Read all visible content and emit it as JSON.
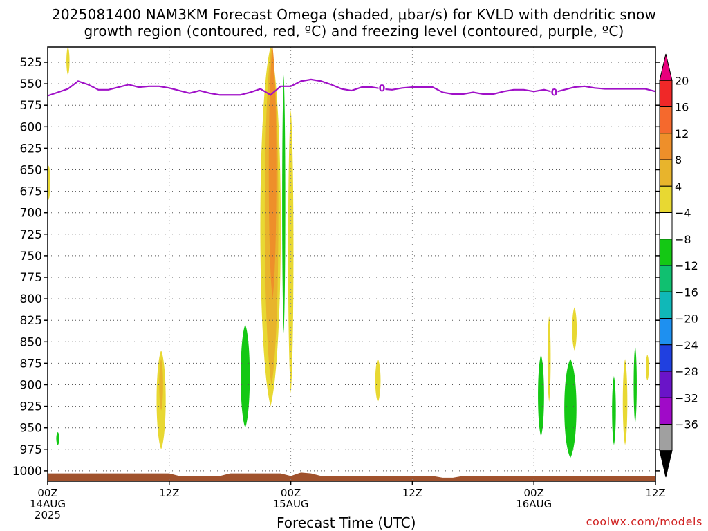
{
  "title_line1": "2025081400 NAM3KM Forecast Omega (shaded, μbar/s) for KVLD with dendritic snow",
  "title_line2": "growth region (contoured, red, ºC) and freezing level (contoured, purple, ºC)",
  "credit": "coolwx.com/models",
  "chart_data": {
    "type": "heatmap",
    "title": "2025081400 NAM3KM Forecast Omega (shaded, μbar/s) for KVLD with dendritic snow growth region (contoured, red, ºC) and freezing level (contoured, purple, ºC)",
    "xlabel": "Forecast Time (UTC)",
    "ylabel": "",
    "x_unit": "forecast hours from 2025-08-14 00Z",
    "xlim": [
      0,
      60
    ],
    "ylim": [
      1015,
      507
    ],
    "x_ticks": [
      {
        "hour": 0,
        "lines": [
          "00Z",
          "14AUG",
          "2025"
        ]
      },
      {
        "hour": 12,
        "lines": [
          "12Z"
        ]
      },
      {
        "hour": 24,
        "lines": [
          "00Z",
          "15AUG"
        ]
      },
      {
        "hour": 36,
        "lines": [
          "12Z"
        ]
      },
      {
        "hour": 48,
        "lines": [
          "00Z",
          "16AUG"
        ]
      },
      {
        "hour": 60,
        "lines": [
          "12Z"
        ]
      }
    ],
    "y_ticks": [
      525,
      550,
      575,
      600,
      625,
      650,
      675,
      700,
      725,
      750,
      775,
      800,
      825,
      850,
      875,
      900,
      925,
      950,
      975,
      1000
    ],
    "grid": true,
    "colorbar": {
      "labels": [
        "20",
        "16",
        "12",
        "8",
        "4",
        "−4",
        "−8",
        "−12",
        "−16",
        "−20",
        "−24",
        "−28",
        "−32",
        "−36"
      ],
      "colors_top_to_bottom": [
        "#e8007c",
        "#f02828",
        "#f5692d",
        "#ee8f2a",
        "#e8b42c",
        "#e8d832",
        "#ffffff",
        "#14c814",
        "#10c070",
        "#10b8b8",
        "#1e90f0",
        "#2040e0",
        "#6a14c8",
        "#a00ac8",
        "#a0a0a0",
        "#000000"
      ]
    },
    "freezing_level": {
      "color": "#a010c8",
      "label": "0",
      "points": [
        [
          0,
          564
        ],
        [
          2,
          556
        ],
        [
          3,
          547
        ],
        [
          4,
          551
        ],
        [
          5,
          557
        ],
        [
          6,
          557
        ],
        [
          7,
          554
        ],
        [
          8,
          551
        ],
        [
          9,
          554
        ],
        [
          10,
          553
        ],
        [
          11,
          553
        ],
        [
          12,
          555
        ],
        [
          13,
          558
        ],
        [
          14,
          561
        ],
        [
          15,
          558
        ],
        [
          16,
          561
        ],
        [
          17,
          563
        ],
        [
          18,
          563
        ],
        [
          19,
          563
        ],
        [
          20,
          560
        ],
        [
          21,
          556
        ],
        [
          22,
          563
        ],
        [
          23,
          553
        ],
        [
          24,
          553
        ],
        [
          25,
          547
        ],
        [
          26,
          545
        ],
        [
          27,
          547
        ],
        [
          28,
          551
        ],
        [
          29,
          556
        ],
        [
          30,
          558
        ],
        [
          31,
          554
        ],
        [
          32,
          554
        ],
        [
          33,
          556
        ],
        [
          34,
          557
        ],
        [
          35,
          555
        ],
        [
          36,
          554
        ],
        [
          37,
          554
        ],
        [
          38,
          554
        ],
        [
          39,
          560
        ],
        [
          40,
          562
        ],
        [
          41,
          562
        ],
        [
          42,
          560
        ],
        [
          43,
          562
        ],
        [
          44,
          562
        ],
        [
          45,
          559
        ],
        [
          46,
          557
        ],
        [
          47,
          557
        ],
        [
          48,
          559
        ],
        [
          49,
          557
        ],
        [
          50,
          560
        ],
        [
          51,
          557
        ],
        [
          52,
          554
        ],
        [
          53,
          553
        ],
        [
          54,
          555
        ],
        [
          55,
          556
        ],
        [
          56,
          556
        ],
        [
          57,
          556
        ],
        [
          58,
          556
        ],
        [
          59,
          556
        ],
        [
          60,
          559
        ]
      ]
    },
    "omega_regions": [
      {
        "value": 4,
        "color": "#e8d832",
        "center": [
          22.0,
          720
        ],
        "rx": 1.35,
        "p": [
          507,
          925
        ]
      },
      {
        "value": 8,
        "color": "#e8b42c",
        "center": [
          22.1,
          700
        ],
        "rx": 0.9,
        "p": [
          507,
          900
        ]
      },
      {
        "value": 12,
        "color": "#ee8f2a",
        "center": [
          22.2,
          640
        ],
        "rx": 0.5,
        "p": [
          507,
          800
        ]
      },
      {
        "value": -8,
        "color": "#14c814",
        "center": [
          23.3,
          660
        ],
        "rx": 0.15,
        "p": [
          540,
          840
        ]
      },
      {
        "value": 4,
        "color": "#e8d832",
        "center": [
          24.0,
          755
        ],
        "rx": 0.35,
        "p": [
          580,
          910
        ]
      },
      {
        "value": 4,
        "color": "#e8d832",
        "center": [
          11.2,
          920
        ],
        "rx": 0.6,
        "p": [
          860,
          975
        ]
      },
      {
        "value": 8,
        "color": "#e8b42c",
        "center": [
          11.2,
          900
        ],
        "rx": 0.25,
        "p": [
          870,
          930
        ]
      },
      {
        "value": -8,
        "color": "#14c814",
        "center": [
          19.5,
          885
        ],
        "rx": 0.6,
        "p": [
          830,
          950
        ]
      },
      {
        "value": 4,
        "color": "#e8d832",
        "center": [
          32.6,
          895
        ],
        "rx": 0.35,
        "p": [
          870,
          920
        ]
      },
      {
        "value": 4,
        "color": "#e8d832",
        "center": [
          2.0,
          522
        ],
        "rx": 0.15,
        "p": [
          507,
          540
        ]
      },
      {
        "value": 4,
        "color": "#e8d832",
        "center": [
          0.1,
          665
        ],
        "rx": 0.15,
        "p": [
          645,
          685
        ]
      },
      {
        "value": -8,
        "color": "#14c814",
        "center": [
          1.0,
          962
        ],
        "rx": 0.2,
        "p": [
          955,
          970
        ]
      },
      {
        "value": -8,
        "color": "#14c814",
        "center": [
          48.7,
          905
        ],
        "rx": 0.4,
        "p": [
          865,
          960
        ]
      },
      {
        "value": 4,
        "color": "#e8d832",
        "center": [
          49.5,
          880
        ],
        "rx": 0.2,
        "p": [
          820,
          920
        ]
      },
      {
        "value": -8,
        "color": "#14c814",
        "center": [
          51.6,
          920
        ],
        "rx": 0.8,
        "p": [
          870,
          985
        ]
      },
      {
        "value": 4,
        "color": "#e8d832",
        "center": [
          52.0,
          835
        ],
        "rx": 0.3,
        "p": [
          810,
          860
        ]
      },
      {
        "value": -8,
        "color": "#14c814",
        "center": [
          55.9,
          930
        ],
        "rx": 0.25,
        "p": [
          890,
          970
        ]
      },
      {
        "value": 4,
        "color": "#e8d832",
        "center": [
          57.0,
          915
        ],
        "rx": 0.3,
        "p": [
          870,
          970
        ]
      },
      {
        "value": -8,
        "color": "#14c814",
        "center": [
          58.0,
          895
        ],
        "rx": 0.15,
        "p": [
          855,
          945
        ]
      },
      {
        "value": 4,
        "color": "#e8d832",
        "center": [
          59.2,
          880
        ],
        "rx": 0.15,
        "p": [
          865,
          895
        ]
      }
    ],
    "terrain": {
      "color": "#a0522d",
      "surface_points": [
        [
          0,
          1003
        ],
        [
          12,
          1003
        ],
        [
          13,
          1006
        ],
        [
          17,
          1006
        ],
        [
          18,
          1003
        ],
        [
          23,
          1003
        ],
        [
          24,
          1006
        ],
        [
          25,
          1002
        ],
        [
          26,
          1003
        ],
        [
          27,
          1006
        ],
        [
          38,
          1006
        ],
        [
          39,
          1008
        ],
        [
          40,
          1008
        ],
        [
          41,
          1006
        ],
        [
          60,
          1006
        ]
      ]
    }
  }
}
